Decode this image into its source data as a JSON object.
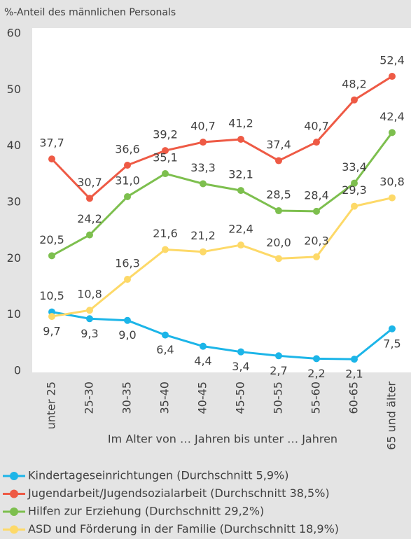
{
  "chart_data": {
    "type": "line",
    "title": "%-Anteil des männlichen Personals",
    "x_label": "Im Alter von … Jahren bis unter … Jahren",
    "categories": [
      "unter 25",
      "25-30",
      "30-35",
      "35-40",
      "40-45",
      "45-50",
      "50-55",
      "55-60",
      "60-65",
      "65 und älter"
    ],
    "ylim": [
      0,
      60
    ],
    "yticks": [
      0,
      10,
      20,
      30,
      40,
      50,
      60
    ],
    "grid": false,
    "legend": "bottom",
    "series": [
      {
        "name": "Kindertageseinrichtungen (Durchschnitt 5,9%)",
        "color": "#1cb5e8",
        "values": [
          10.5,
          9.3,
          9.0,
          6.4,
          4.4,
          3.4,
          2.7,
          2.2,
          2.1,
          7.5
        ],
        "value_labels": [
          "10,5",
          "9,3",
          "9,0",
          "6,4",
          "4,4",
          "3,4",
          "2,7",
          "2,2",
          "2,1",
          "7,5"
        ]
      },
      {
        "name": "Jugendarbeit/Jugendsozialarbeit (Durchschnitt 38,5%)",
        "color": "#ee5a45",
        "values": [
          37.7,
          30.7,
          36.6,
          39.2,
          40.7,
          41.2,
          37.4,
          40.7,
          48.2,
          52.4
        ],
        "value_labels": [
          "37,7",
          "30,7",
          "36,6",
          "39,2",
          "40,7",
          "41,2",
          "37,4",
          "40,7",
          "48,2",
          "52,4"
        ]
      },
      {
        "name": "Hilfen zur Erziehung (Durchschnitt 29,2%)",
        "color": "#7dbf4e",
        "values": [
          20.5,
          24.2,
          31.0,
          35.1,
          33.3,
          32.1,
          28.5,
          28.4,
          33.4,
          42.4
        ],
        "value_labels": [
          "20,5",
          "24,2",
          "31,0",
          "35,1",
          "33,3",
          "32,1",
          "28,5",
          "28,4",
          "33,4",
          "42,4"
        ]
      },
      {
        "name": "ASD und Förderung in der Familie (Durchschnitt 18,9%)",
        "color": "#fdd968",
        "values": [
          9.7,
          10.8,
          16.3,
          21.6,
          21.2,
          22.4,
          20.0,
          20.3,
          29.3,
          30.8
        ],
        "value_labels": [
          "9,7",
          "10,8",
          "16,3",
          "21,6",
          "21,2",
          "22,4",
          "20,0",
          "20,3",
          "29,3",
          "30,8"
        ]
      }
    ]
  }
}
